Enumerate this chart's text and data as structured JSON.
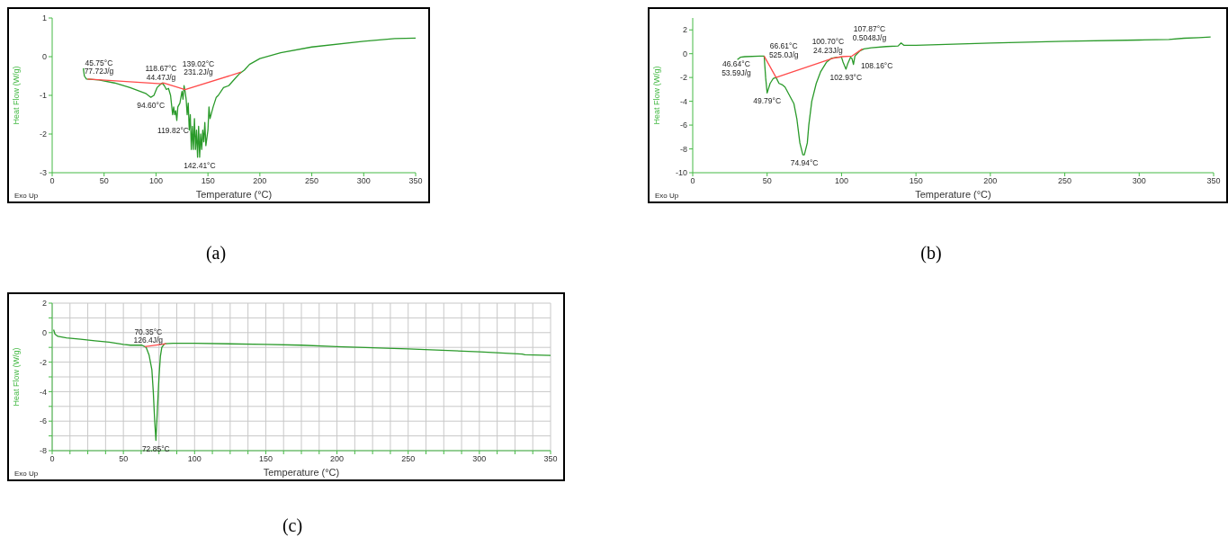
{
  "chart_data": [
    {
      "type": "line",
      "title": "(a)",
      "xlabel": "Temperature (°C)",
      "ylabel": "Heat Flow (W/g)",
      "xlim": [
        0,
        350
      ],
      "xticks": [
        0,
        50,
        100,
        150,
        200,
        250,
        300,
        350
      ],
      "ylim": [
        -3,
        1
      ],
      "yticks": [
        -3,
        -2,
        -1,
        0,
        1
      ],
      "series": [
        {
          "color": "#2a9a2a",
          "x": [
            30,
            31,
            33,
            45,
            60,
            75,
            90,
            95,
            98,
            101,
            104,
            106,
            108,
            110,
            112,
            114,
            116,
            117,
            118,
            119,
            120,
            121,
            123,
            125,
            126,
            127,
            128,
            129,
            130,
            131,
            132,
            133,
            134,
            135,
            136,
            137,
            138,
            139,
            140,
            141,
            142,
            143,
            144,
            145,
            146,
            147,
            148,
            150,
            151,
            152,
            155,
            158,
            160,
            165,
            170,
            175,
            180,
            185,
            190,
            200,
            220,
            250,
            300,
            330,
            350
          ],
          "values": [
            -0.3,
            -0.5,
            -0.58,
            -0.6,
            -0.68,
            -0.8,
            -0.95,
            -1.05,
            -1.0,
            -0.8,
            -0.72,
            -0.68,
            -0.75,
            -0.85,
            -0.82,
            -1.0,
            -1.5,
            -1.3,
            -1.5,
            -1.4,
            -1.65,
            -1.3,
            -1.2,
            -0.9,
            -1.1,
            -0.75,
            -0.9,
            -1.1,
            -1.5,
            -1.2,
            -1.9,
            -1.5,
            -2.4,
            -1.8,
            -2.4,
            -1.6,
            -2.4,
            -1.9,
            -2.6,
            -1.8,
            -2.6,
            -2.0,
            -2.4,
            -1.9,
            -2.2,
            -1.7,
            -2.3,
            -1.9,
            -1.3,
            -1.6,
            -1.3,
            -1.05,
            -1.0,
            -0.8,
            -0.75,
            -0.6,
            -0.45,
            -0.35,
            -0.2,
            -0.05,
            0.1,
            0.25,
            0.4,
            0.47,
            0.48
          ]
        },
        {
          "color": "#ff4a4a",
          "x": [
            34,
            105,
            107,
            128,
            182
          ],
          "values": [
            -0.58,
            -0.7,
            -0.68,
            -0.85,
            -0.4
          ]
        }
      ],
      "annotations": [
        {
          "text": "45.75°C\n77.72J/g",
          "x": 45,
          "y": -0.6
        },
        {
          "text": "118.67°C\n44.47J/g",
          "x": 118.67,
          "y": -0.77
        },
        {
          "text": "139.02°C\n231.2J/g",
          "x": 139.02,
          "y": -0.76
        },
        {
          "text": "94.60°C",
          "x": 95,
          "y": -1.05
        },
        {
          "text": "119.82°C",
          "x": 120,
          "y": -1.65
        },
        {
          "text": "142.41°C",
          "x": 142,
          "y": -2.6
        },
        "Exo Up"
      ]
    },
    {
      "type": "line",
      "title": "(b)",
      "xlabel": "Temperature (°C)",
      "ylabel": "Heat Flow (W/g)",
      "xlim": [
        0,
        350
      ],
      "xticks": [
        0,
        50,
        100,
        150,
        200,
        250,
        300,
        350
      ],
      "ylim": [
        -10,
        3
      ],
      "yticks": [
        -10,
        -8,
        -6,
        -4,
        -2,
        0,
        2
      ],
      "series": [
        {
          "color": "#2a9a2a",
          "x": [
            30,
            32,
            35,
            45,
            48,
            49,
            50,
            52,
            54,
            56,
            58,
            60,
            62,
            65,
            68,
            70,
            72,
            74,
            75,
            77,
            78,
            80,
            83,
            86,
            90,
            93,
            97,
            100,
            101,
            103,
            104,
            106,
            107,
            108,
            109,
            112,
            115,
            120,
            130,
            138,
            140,
            142,
            150,
            200,
            250,
            300,
            320,
            330,
            340,
            348
          ],
          "values": [
            -0.5,
            -0.3,
            -0.25,
            -0.2,
            -0.2,
            -2,
            -3.3,
            -2.5,
            -2.1,
            -2.0,
            -2.5,
            -2.6,
            -2.8,
            -3.5,
            -4.2,
            -5.5,
            -7.5,
            -8.5,
            -8.5,
            -7.5,
            -6,
            -4,
            -2.5,
            -1.5,
            -0.7,
            -0.4,
            -0.3,
            -0.3,
            -0.7,
            -1.3,
            -0.9,
            -0.3,
            -0.4,
            -0.9,
            -0.2,
            0.2,
            0.4,
            0.5,
            0.6,
            0.65,
            0.9,
            0.7,
            0.7,
            0.9,
            1.05,
            1.15,
            1.2,
            1.3,
            1.35,
            1.4
          ]
        },
        {
          "color": "#ff4a4a",
          "x": [
            48,
            56,
            94,
            100,
            107,
            114
          ],
          "values": [
            -0.2,
            -2.0,
            -0.4,
            -0.25,
            -0.2,
            0.4
          ]
        }
      ],
      "annotations": [
        {
          "text": "46.64°C\n53.59J/g",
          "x": 45,
          "y": -0.2
        },
        {
          "text": "66.61°C\n525.0J/g",
          "x": 66.61,
          "y": -1.55
        },
        {
          "text": "100.70°C\n24.23J/g",
          "x": 100,
          "y": -0.25
        },
        {
          "text": "107.87°C\n0.5048J/g",
          "x": 107.87,
          "y": -0.13
        },
        {
          "text": "49.79°C",
          "x": 50,
          "y": -3.3
        },
        {
          "text": "74.94°C",
          "x": 75,
          "y": -8.5
        },
        {
          "text": "102.93°C",
          "x": 103,
          "y": -1.3
        },
        {
          "text": "108.16°C",
          "x": 108,
          "y": -0.9
        },
        "Exo Up"
      ]
    },
    {
      "type": "line",
      "title": "(c)",
      "xlabel": "Temperature (°C)",
      "ylabel": "Heat Flow (W/g)",
      "xlim": [
        0,
        350
      ],
      "xticks": [
        0,
        {
          "value": 12.5,
          "label": null
        },
        {
          "value": 25,
          "label": null
        },
        {
          "value": 37.5,
          "label": null
        },
        50,
        {
          "value": 62.5,
          "label": null
        },
        {
          "value": 75,
          "label": null
        },
        {
          "value": 87.5,
          "label": null
        },
        100,
        {
          "value": 112.5,
          "label": null
        },
        {
          "value": 125,
          "label": null
        },
        {
          "value": 137.5,
          "label": null
        },
        150,
        {
          "value": 162.5,
          "label": null
        },
        {
          "value": 175,
          "label": null
        },
        {
          "value": 187.5,
          "label": null
        },
        200,
        {
          "value": 212.5,
          "label": null
        },
        {
          "value": 225,
          "label": null
        },
        {
          "value": 237.5,
          "label": null
        },
        250,
        {
          "value": 262.5,
          "label": null
        },
        {
          "value": 275,
          "label": null
        },
        {
          "value": 287.5,
          "label": null
        },
        300,
        {
          "value": 312.5,
          "label": null
        },
        {
          "value": 325,
          "label": null
        },
        {
          "value": 337.5,
          "label": null
        },
        350
      ],
      "ylim": [
        -8,
        2
      ],
      "yticks": [
        -8,
        {
          "value": -7,
          "label": null
        },
        -6,
        {
          "value": -5,
          "label": null
        },
        -4,
        {
          "value": -3,
          "label": null
        },
        -2,
        {
          "value": -1,
          "label": null
        },
        0,
        {
          "value": 1,
          "label": null
        },
        2
      ],
      "grid": true,
      "series": [
        {
          "color": "#2a9a2a",
          "x": [
            1,
            2,
            4,
            10,
            20,
            30,
            40,
            50,
            55,
            63,
            66,
            68,
            70,
            71,
            72,
            72.85,
            74,
            75,
            76,
            77,
            79,
            85,
            100,
            150,
            175,
            200,
            250,
            300,
            330,
            332,
            350
          ],
          "values": [
            0.2,
            -0.1,
            -0.25,
            -0.35,
            -0.45,
            -0.55,
            -0.65,
            -0.8,
            -0.85,
            -0.85,
            -1.0,
            -1.5,
            -2.5,
            -4,
            -6,
            -7.3,
            -5,
            -3,
            -1.6,
            -1.0,
            -0.75,
            -0.72,
            -0.72,
            -0.8,
            -0.85,
            -0.95,
            -1.1,
            -1.3,
            -1.45,
            -1.5,
            -1.55
          ]
        },
        {
          "color": "#ff4a4a",
          "x": [
            65,
            80
          ],
          "values": [
            -0.95,
            -0.75
          ]
        }
      ],
      "annotations": [
        {
          "text": "70.35°C\n126.4J/g",
          "x": 70,
          "y": -0.9
        },
        {
          "text": "72.85°C",
          "x": 72.85,
          "y": -7.3
        },
        "Exo Up"
      ]
    }
  ]
}
